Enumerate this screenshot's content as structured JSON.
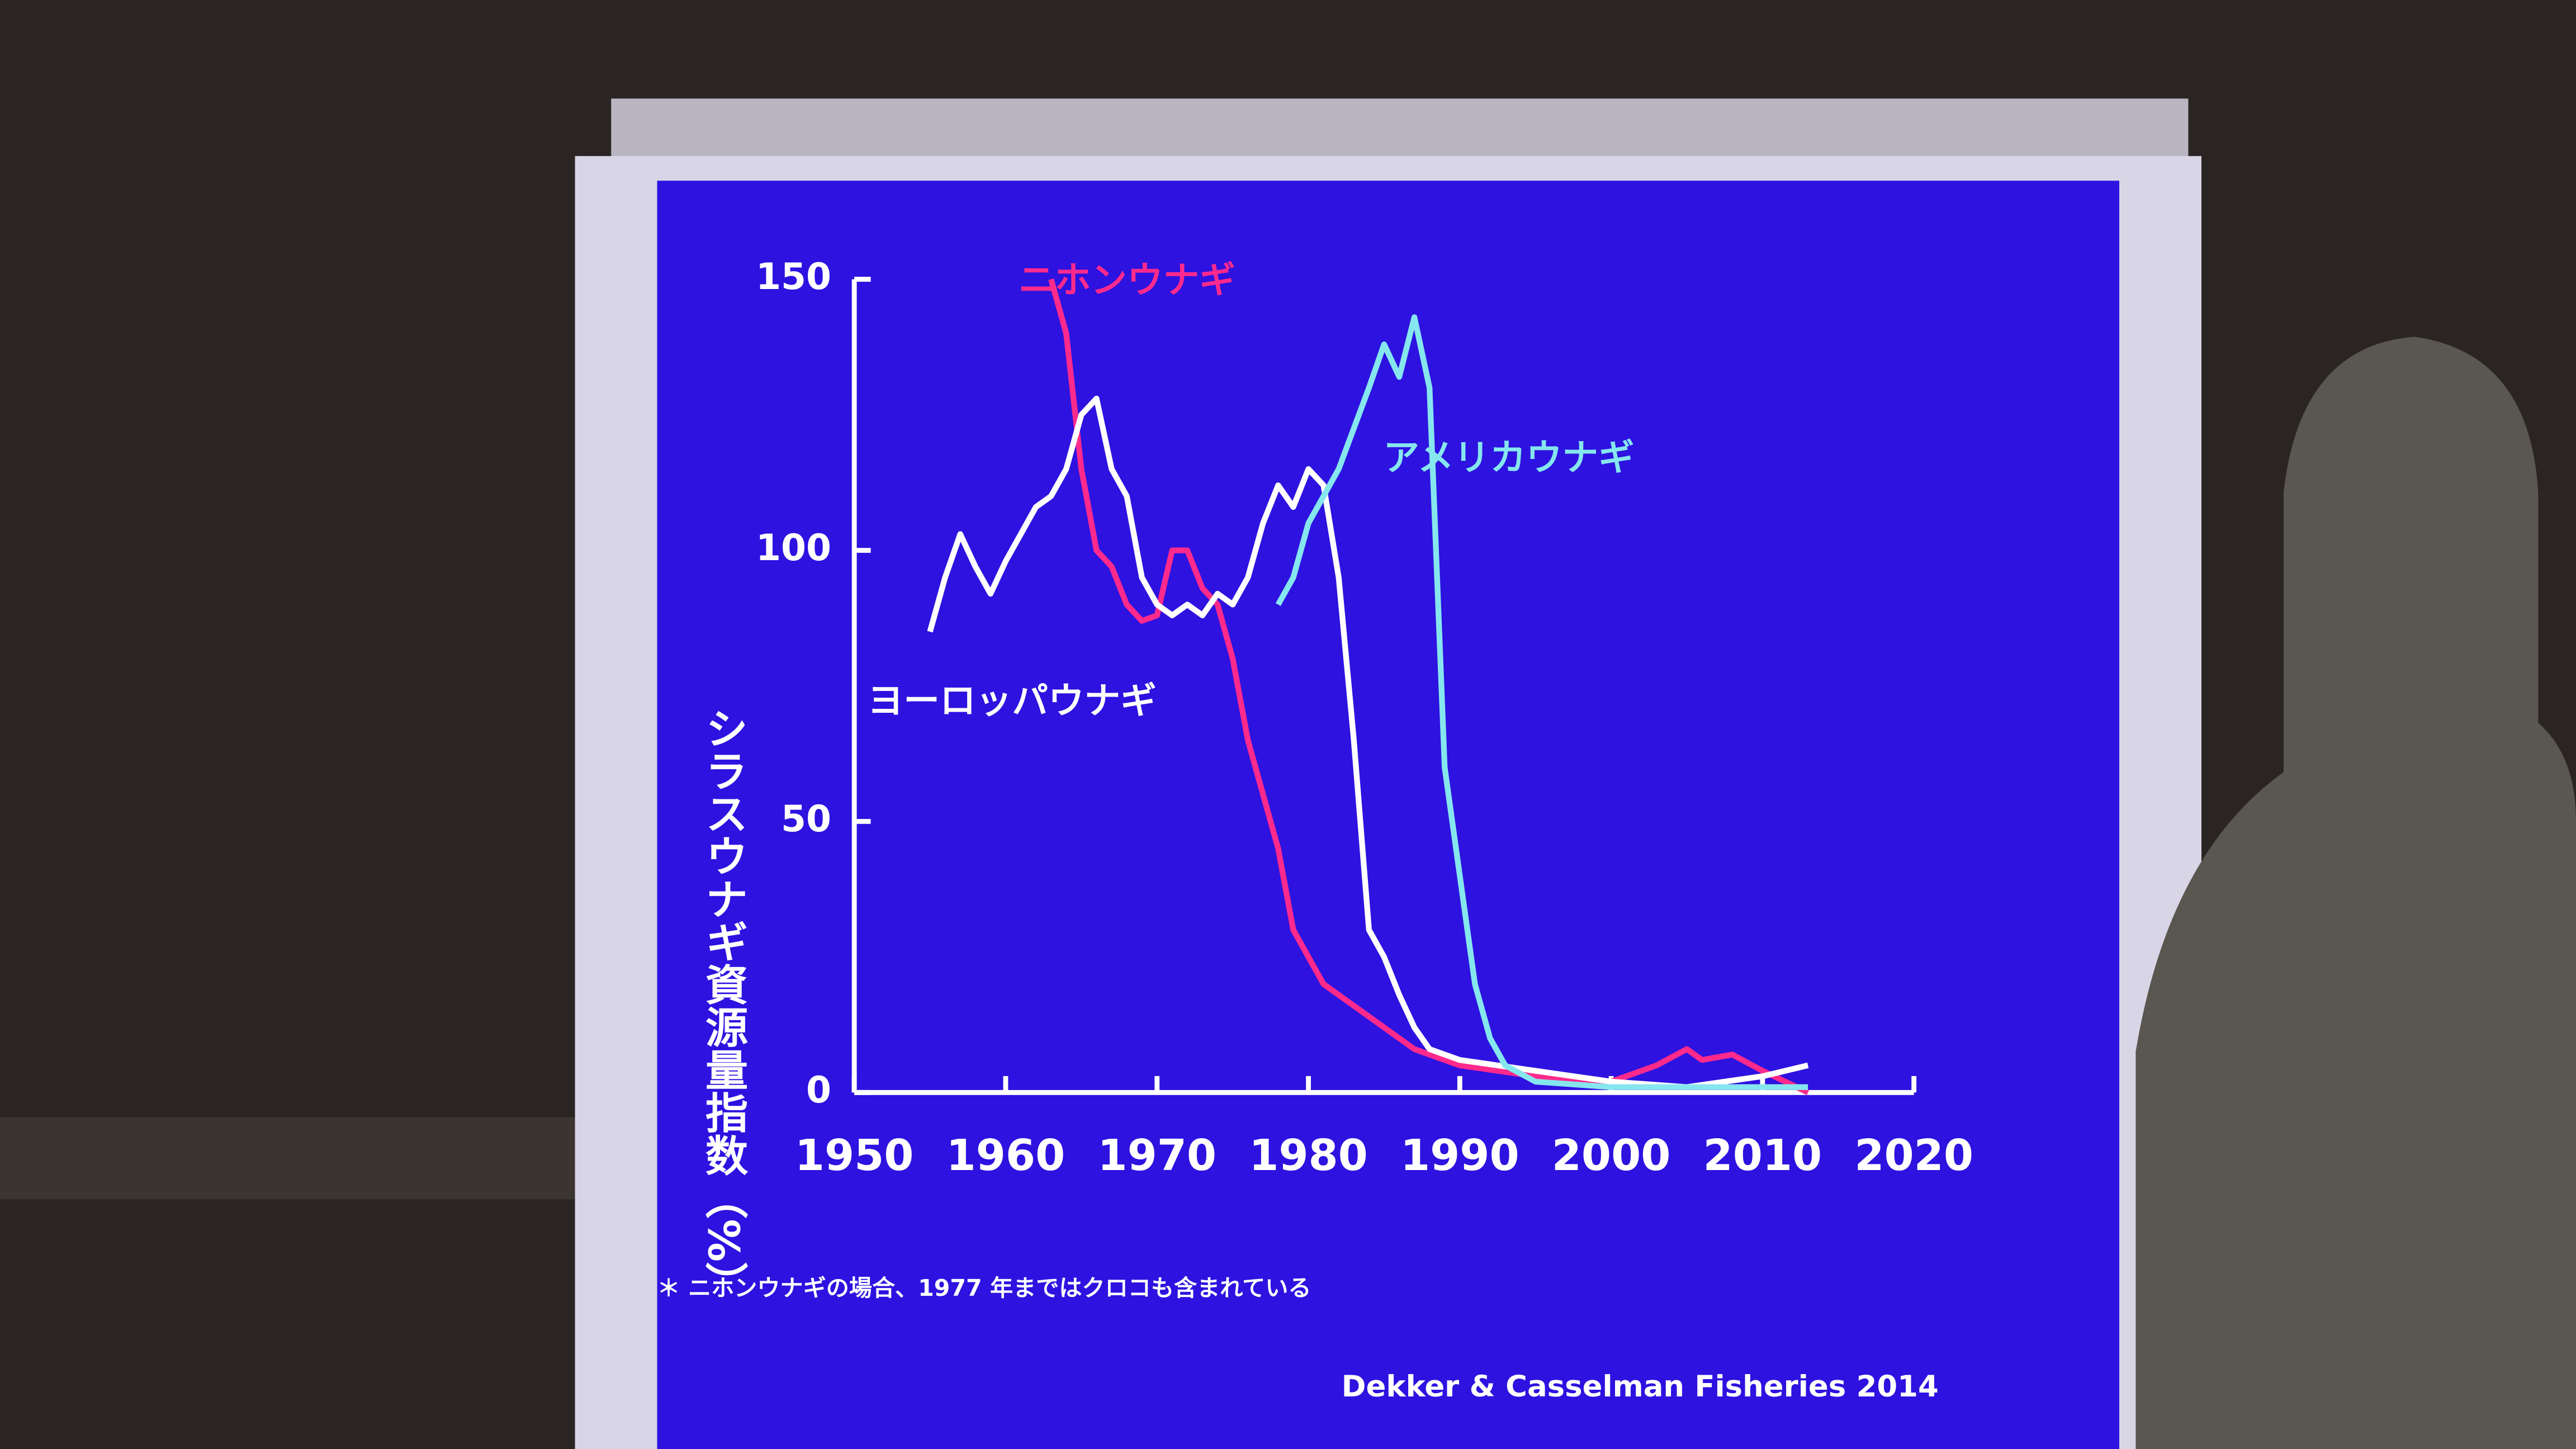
{
  "chart_data": {
    "type": "line",
    "y_axis_label": "シラスウナギ資源量指数（%）",
    "xlim": [
      1950,
      2020
    ],
    "xticks": [
      1950,
      1960,
      1970,
      1980,
      1990,
      2000,
      2010,
      2020
    ],
    "ylim": [
      0,
      150
    ],
    "yticks": [
      0,
      50,
      100,
      150
    ],
    "series": [
      {
        "name": "ニホンウナギ",
        "color": "#ff2a8c",
        "x": [
          1963,
          1964,
          1965,
          1966,
          1967,
          1968,
          1969,
          1970,
          1971,
          1972,
          1973,
          1974,
          1975,
          1976,
          1977,
          1978,
          1979,
          1980,
          1981,
          1982,
          1985,
          1987,
          1990,
          1995,
          2000,
          2003,
          2005,
          2006,
          2008,
          2010,
          2013
        ],
        "values": [
          150,
          140,
          115,
          100,
          97,
          90,
          87,
          88,
          100,
          100,
          93,
          90,
          80,
          65,
          55,
          45,
          30,
          25,
          20,
          18,
          12,
          8,
          5,
          3,
          2,
          5,
          8,
          6,
          7,
          4,
          0
        ]
      },
      {
        "name": "ヨーロッパウナギ",
        "color": "#ffffff",
        "x": [
          1955,
          1956,
          1957,
          1958,
          1959,
          1960,
          1961,
          1962,
          1963,
          1964,
          1965,
          1966,
          1967,
          1968,
          1969,
          1970,
          1971,
          1972,
          1973,
          1974,
          1975,
          1976,
          1977,
          1978,
          1979,
          1980,
          1981,
          1982,
          1983,
          1984,
          1985,
          1986,
          1987,
          1988,
          1990,
          1995,
          2000,
          2005,
          2010,
          2013
        ],
        "values": [
          85,
          95,
          103,
          97,
          92,
          98,
          103,
          108,
          110,
          115,
          125,
          128,
          115,
          110,
          95,
          90,
          88,
          90,
          88,
          92,
          90,
          95,
          105,
          112,
          108,
          115,
          112,
          95,
          65,
          30,
          25,
          18,
          12,
          8,
          6,
          4,
          2,
          1,
          3,
          5
        ]
      },
      {
        "name": "アメリカウナギ",
        "color": "#86e6ee",
        "x": [
          1978,
          1979,
          1980,
          1982,
          1984,
          1985,
          1986,
          1987,
          1988,
          1989,
          1990,
          1991,
          1992,
          1993,
          1995,
          2000,
          2005,
          2010,
          2013
        ],
        "values": [
          90,
          95,
          105,
          115,
          130,
          138,
          132,
          143,
          130,
          60,
          40,
          20,
          10,
          5,
          2,
          1,
          1,
          1,
          1
        ]
      }
    ],
    "footnote": "＊ ニホンウナギの場合、1977 年まではクロコも含まれている",
    "source": "Dekker & Casselman Fisheries 2014"
  }
}
